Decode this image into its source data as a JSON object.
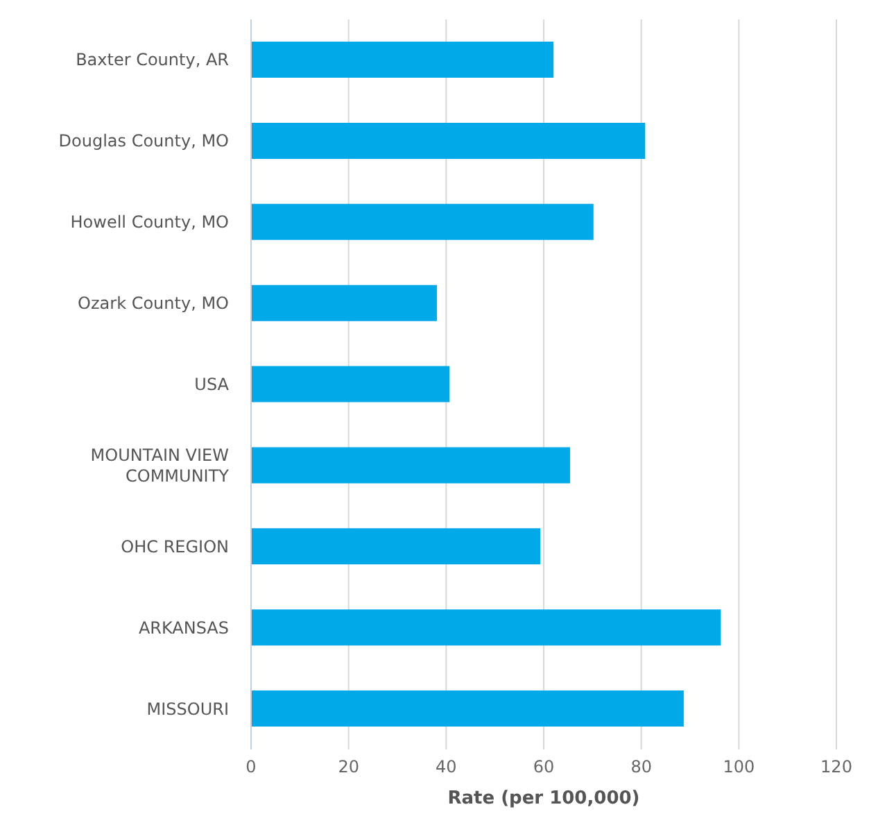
{
  "chart_data": {
    "type": "bar",
    "orientation": "horizontal",
    "categories": [
      "Baxter County, AR",
      "Douglas County, MO",
      "Howell County, MO",
      "Ozark County, MO",
      "USA",
      "MOUNTAIN VIEW COMMUNITY",
      "OHC REGION",
      "ARKANSAS",
      "MISSOURI"
    ],
    "values": [
      62.0,
      80.8,
      70.2,
      38.1,
      40.7,
      65.4,
      59.3,
      96.3,
      88.7
    ],
    "color": "#01a9e9",
    "xlabel": "Rate (per 100,000)",
    "xlim": [
      0,
      120
    ],
    "xticks": [
      0,
      20,
      40,
      60,
      80,
      100,
      120
    ],
    "grid": "x",
    "legend": false
  }
}
